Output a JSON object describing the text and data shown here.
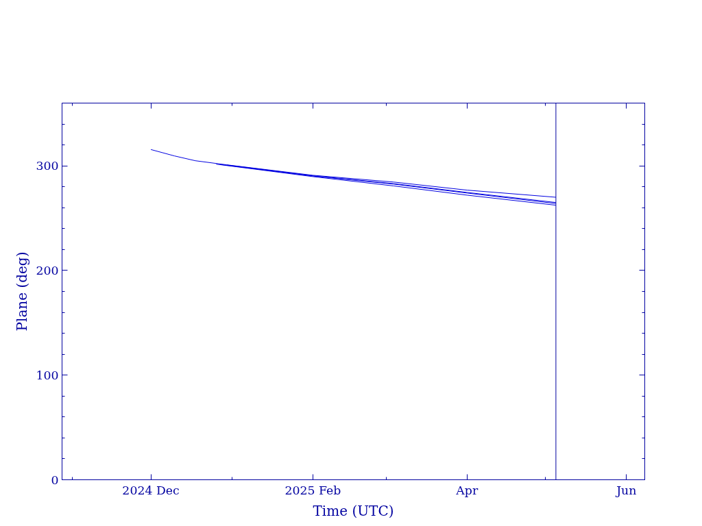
{
  "chart_data": {
    "type": "line",
    "xlabel": "Time (UTC)",
    "ylabel": "Plane (deg)",
    "xlim": [
      "2024-10-28",
      "2025-06-08"
    ],
    "ylim": [
      0,
      360
    ],
    "xticks": [
      {
        "value": "2024-11-01",
        "label": null
      },
      {
        "value": "2024-12-01",
        "label": "2024 Dec"
      },
      {
        "value": "2025-01-01",
        "label": null
      },
      {
        "value": "2025-02-01",
        "label": "2025 Feb"
      },
      {
        "value": "2025-03-01",
        "label": null
      },
      {
        "value": "2025-04-01",
        "label": "Apr"
      },
      {
        "value": "2025-05-01",
        "label": null
      },
      {
        "value": "2025-06-01",
        "label": "Jun"
      }
    ],
    "yticks": [
      0,
      {
        "value": 20,
        "label": null
      },
      {
        "value": 40,
        "label": null
      },
      {
        "value": 60,
        "label": null
      },
      {
        "value": 80,
        "label": null
      },
      100,
      {
        "value": 120,
        "label": null
      },
      {
        "value": 140,
        "label": null
      },
      {
        "value": 160,
        "label": null
      },
      {
        "value": 180,
        "label": null
      },
      200,
      {
        "value": 220,
        "label": null
      },
      {
        "value": 240,
        "label": null
      },
      {
        "value": 260,
        "label": null
      },
      {
        "value": 280,
        "label": null
      },
      300,
      {
        "value": 320,
        "label": null
      },
      {
        "value": 340,
        "label": null
      }
    ],
    "x": [
      "2024-12-01",
      "2024-12-10",
      "2024-12-18",
      "2024-12-30",
      "2025-02-01",
      "2025-03-04",
      "2025-04-01",
      "2025-05-05"
    ],
    "series": [
      {
        "color": "#0000e0",
        "values": [
          315.6,
          309.5,
          304.9,
          301.0,
          291.0,
          284.5,
          276.8,
          270.0
        ]
      },
      {
        "color": "#0000e0",
        "x": [
          "2024-12-30",
          "2025-02-01",
          "2025-03-04",
          "2025-04-01",
          "2025-05-05"
        ],
        "values": [
          300.8,
          290.5,
          283.0,
          274.6,
          265.0
        ]
      },
      {
        "color": "#0000e0",
        "x": [
          "2024-12-28",
          "2025-02-01",
          "2025-03-04",
          "2025-04-01",
          "2025-05-05"
        ],
        "values": [
          301.2,
          290.3,
          282.5,
          274.0,
          264.0
        ]
      },
      {
        "color": "#0000e0",
        "x": [
          "2024-12-26",
          "2025-02-01",
          "2025-03-04",
          "2025-04-01",
          "2025-05-05"
        ],
        "values": [
          301.6,
          289.7,
          280.8,
          272.0,
          262.4
        ]
      }
    ],
    "ref_lines": [
      {
        "axis": "x",
        "value": "2025-05-05",
        "color": "#0000a0"
      }
    ],
    "grid": false
  }
}
